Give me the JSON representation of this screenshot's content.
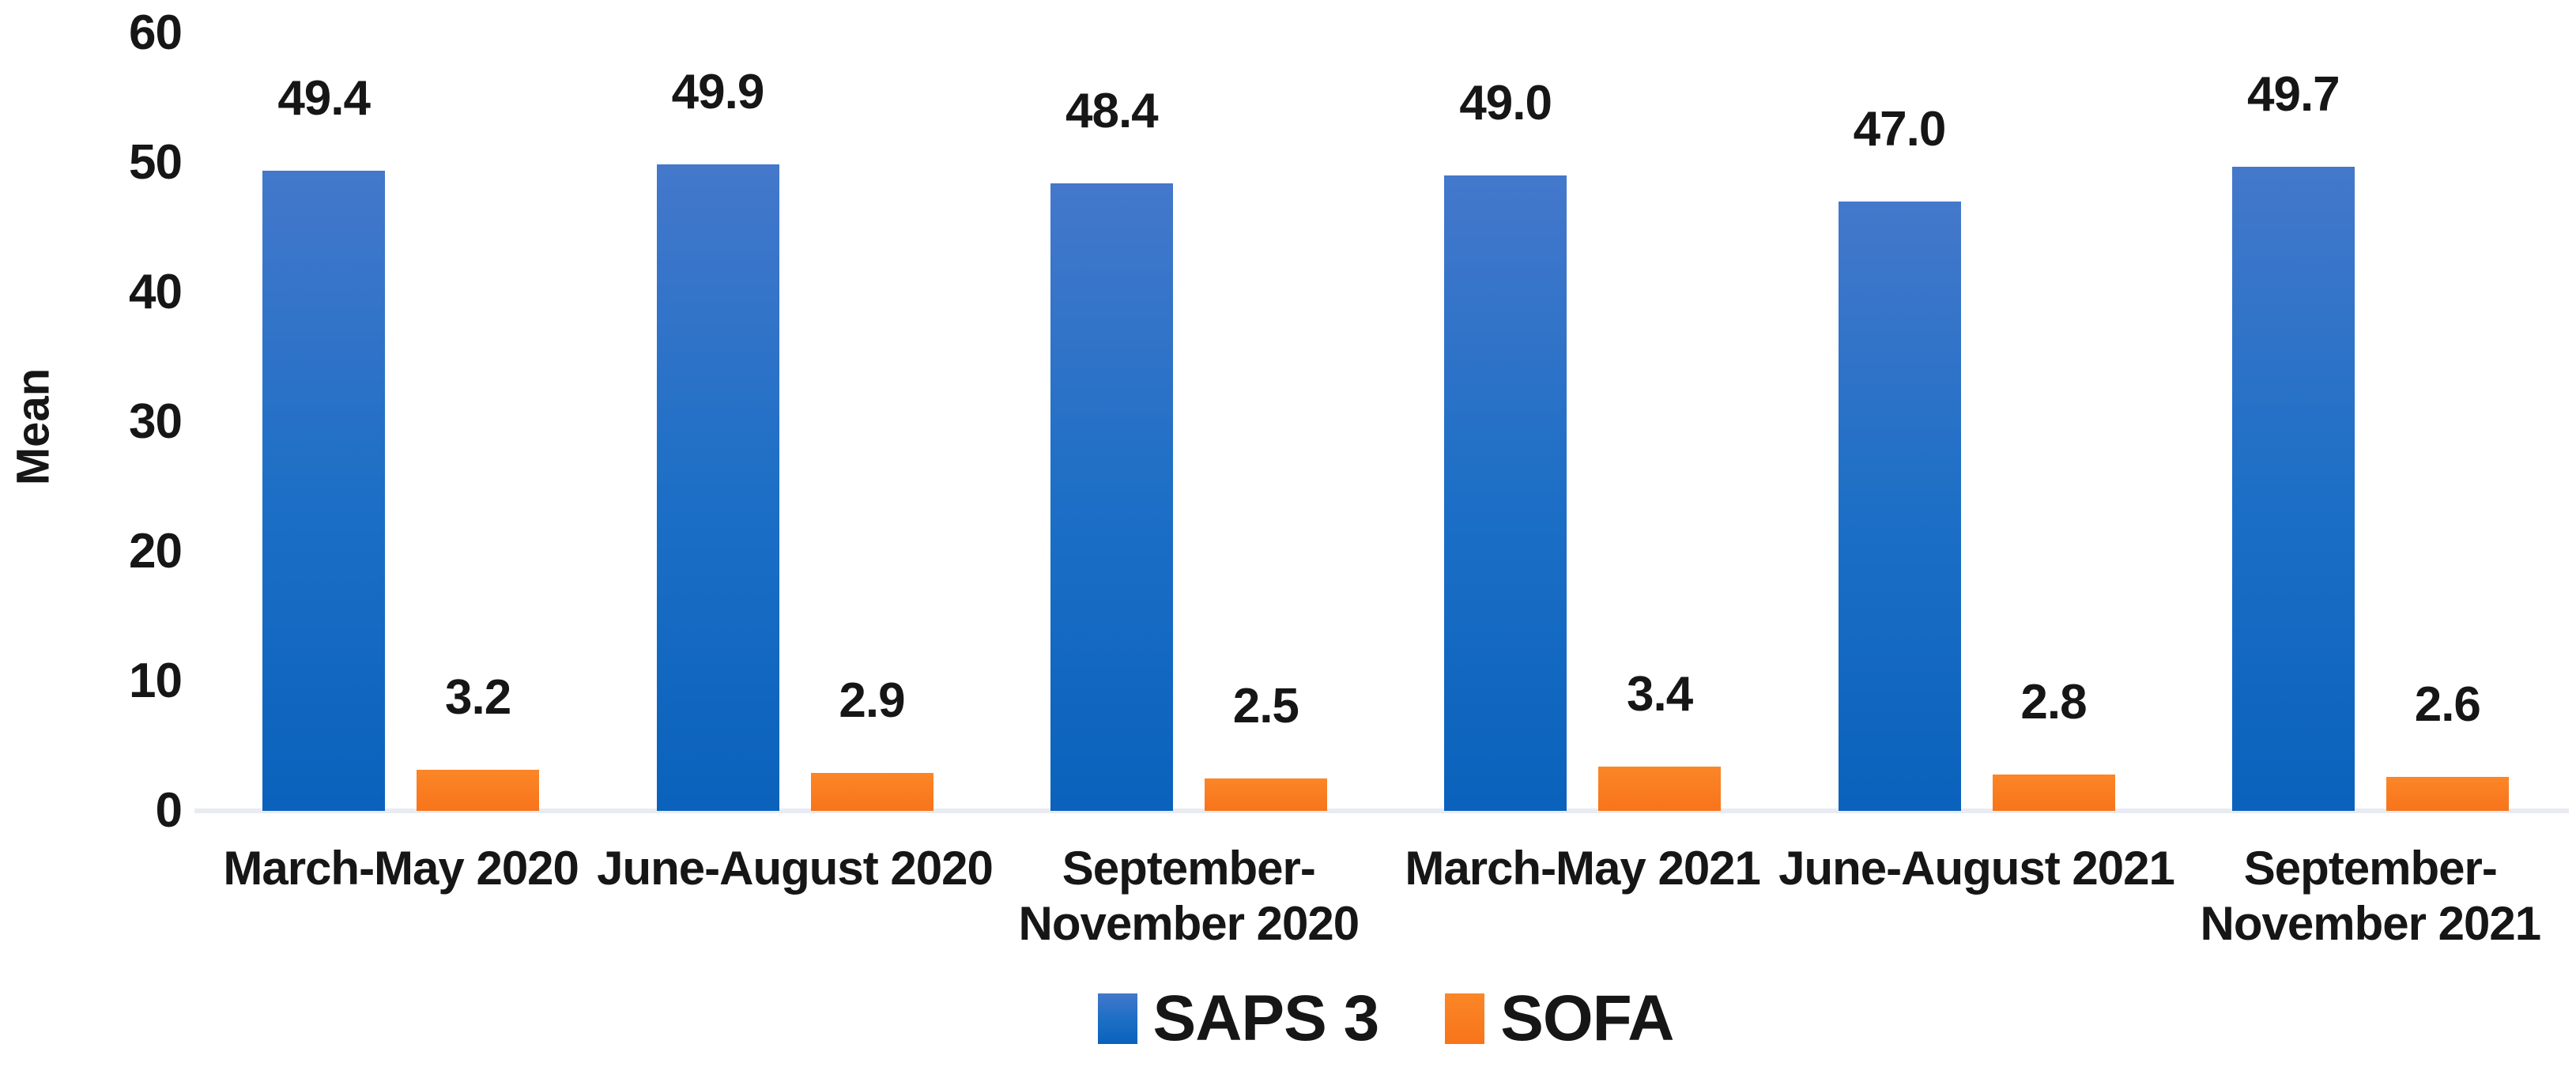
{
  "chart_data": {
    "type": "bar",
    "title": "",
    "xlabel": "",
    "ylabel": "Mean",
    "ylim": [
      0,
      60
    ],
    "yticks": [
      "0",
      "10",
      "20",
      "30",
      "40",
      "50",
      "60"
    ],
    "grid": false,
    "legend_position": "bottom-center",
    "categories": [
      "March-May 2020",
      "June-August 2020",
      "September-November 2020",
      "March-May 2021",
      "June-August 2021",
      "September-November 2021"
    ],
    "series": [
      {
        "name": "SAPS 3",
        "values": [
          49.4,
          49.9,
          48.4,
          49.0,
          47.0,
          49.7
        ],
        "labels": [
          "49.4",
          "49.9",
          "48.4",
          "49.0",
          "47.0",
          "49.7"
        ],
        "color_top": "#4478cb",
        "color_bottom": "#0a62bc"
      },
      {
        "name": "SOFA",
        "values": [
          3.2,
          2.9,
          2.5,
          3.4,
          2.8,
          2.6
        ],
        "labels": [
          "3.2",
          "2.9",
          "2.5",
          "3.4",
          "2.8",
          "2.6"
        ],
        "color_top": "#fb8628",
        "color_bottom": "#f8741a"
      }
    ],
    "axis_line_color": "#e8ebf1",
    "text_color": "#161616"
  }
}
